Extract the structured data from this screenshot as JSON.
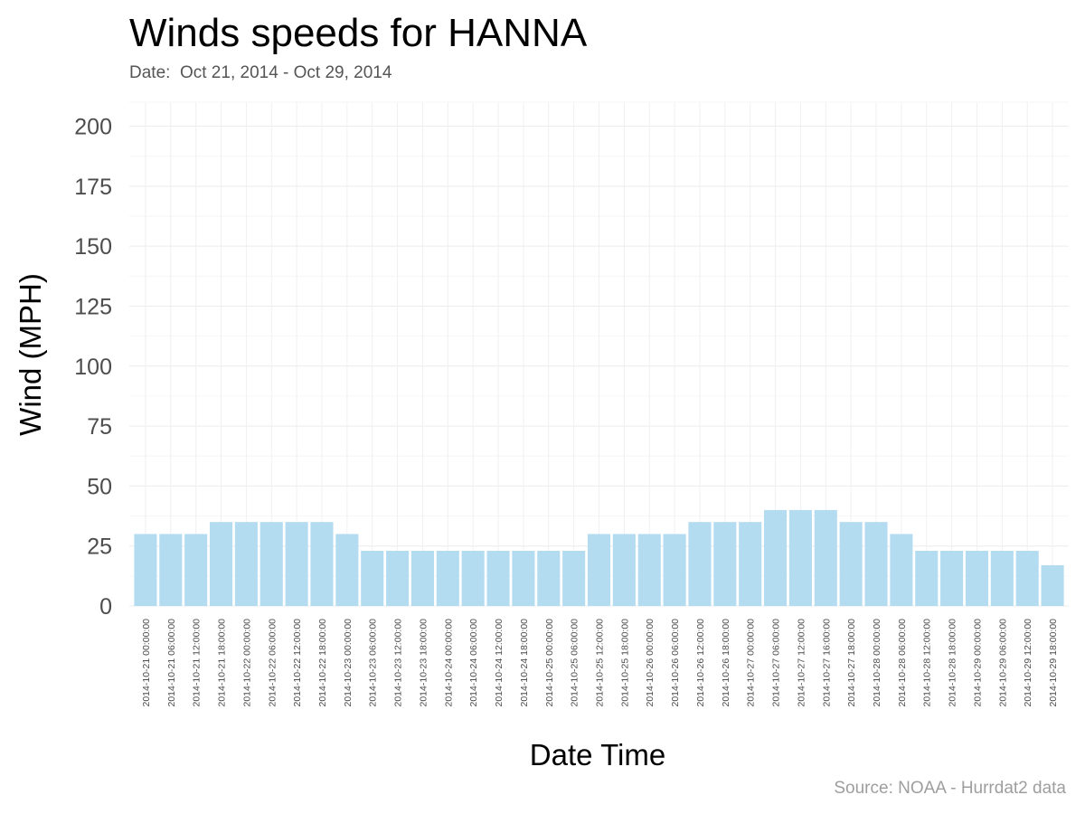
{
  "chart_data": {
    "type": "bar",
    "title": "Winds speeds for HANNA",
    "subtitle": "Date:  Oct 21, 2014 - Oct 29, 2014",
    "caption": "Source: NOAA - Hurrdat2 data",
    "xlabel": "Date Time",
    "ylabel": "Wind (MPH)",
    "ylim": [
      0,
      210
    ],
    "yticks": [
      0,
      25,
      50,
      75,
      100,
      125,
      150,
      175,
      200
    ],
    "grid": true,
    "legend": "none",
    "bar_color": "#b3dcf1",
    "categories": [
      "2014-10-21 00:00:00",
      "2014-10-21 06:00:00",
      "2014-10-21 12:00:00",
      "2014-10-21 18:00:00",
      "2014-10-22 00:00:00",
      "2014-10-22 06:00:00",
      "2014-10-22 12:00:00",
      "2014-10-22 18:00:00",
      "2014-10-23 00:00:00",
      "2014-10-23 06:00:00",
      "2014-10-23 12:00:00",
      "2014-10-23 18:00:00",
      "2014-10-24 00:00:00",
      "2014-10-24 06:00:00",
      "2014-10-24 12:00:00",
      "2014-10-24 18:00:00",
      "2014-10-25 00:00:00",
      "2014-10-25 06:00:00",
      "2014-10-25 12:00:00",
      "2014-10-25 18:00:00",
      "2014-10-26 00:00:00",
      "2014-10-26 06:00:00",
      "2014-10-26 12:00:00",
      "2014-10-26 18:00:00",
      "2014-10-27 00:00:00",
      "2014-10-27 06:00:00",
      "2014-10-27 12:00:00",
      "2014-10-27 16:00:00",
      "2014-10-27 18:00:00",
      "2014-10-28 00:00:00",
      "2014-10-28 06:00:00",
      "2014-10-28 12:00:00",
      "2014-10-28 18:00:00",
      "2014-10-29 00:00:00",
      "2014-10-29 06:00:00",
      "2014-10-29 12:00:00",
      "2014-10-29 18:00:00"
    ],
    "values": [
      30,
      30,
      30,
      35,
      35,
      35,
      35,
      35,
      30,
      23,
      23,
      23,
      23,
      23,
      23,
      23,
      23,
      23,
      30,
      30,
      30,
      30,
      35,
      35,
      35,
      40,
      40,
      40,
      35,
      35,
      30,
      23,
      23,
      23,
      23,
      23,
      17
    ]
  }
}
